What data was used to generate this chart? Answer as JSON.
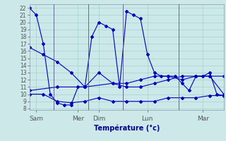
{
  "xlabel": "Température (°c)",
  "bg_color": "#cce8e8",
  "grid_color": "#99cccc",
  "line_color": "#0000bb",
  "ylim": [
    7.8,
    22.5
  ],
  "xlim": [
    0,
    28
  ],
  "yticks": [
    8,
    9,
    10,
    11,
    12,
    13,
    14,
    15,
    16,
    17,
    18,
    19,
    20,
    21,
    22
  ],
  "xtick_positions": [
    1,
    7,
    10,
    17,
    25
  ],
  "xtick_labels": [
    "Sam",
    "Mer",
    "Dim",
    "Lun",
    "Mar"
  ],
  "vlines": [
    3.5,
    8.5,
    13.5,
    21.5
  ],
  "s1x": [
    0,
    1,
    2,
    3,
    4,
    5,
    6,
    7,
    8,
    9,
    10,
    11,
    12,
    13,
    14,
    15,
    16,
    17,
    18,
    19,
    20,
    21,
    22,
    23,
    24,
    25,
    26,
    27,
    28
  ],
  "s1y": [
    22,
    21,
    17,
    10,
    8.8,
    8.5,
    8.5,
    11.0,
    11.0,
    18.0,
    20.0,
    19.5,
    19.0,
    11.0,
    21.5,
    21.0,
    20.5,
    15.5,
    13.0,
    12.5,
    12.5,
    12.5,
    11.5,
    10.5,
    12.5,
    12.5,
    13.0,
    10.0,
    9.8
  ],
  "s2x": [
    0,
    2,
    4,
    6,
    8,
    10,
    12,
    14,
    16,
    18,
    20,
    22,
    24,
    26,
    28
  ],
  "s2y": [
    16.5,
    15.5,
    14.5,
    13.0,
    11.0,
    13.0,
    11.5,
    11.0,
    11.0,
    11.5,
    12.0,
    12.5,
    12.5,
    12.5,
    12.5
  ],
  "s3x": [
    0,
    2,
    4,
    6,
    8,
    10,
    12,
    14,
    16,
    18,
    20,
    22,
    24,
    26,
    28
  ],
  "s3y": [
    10.0,
    10.0,
    9.0,
    8.8,
    9.0,
    9.5,
    9.0,
    9.0,
    9.0,
    9.0,
    9.5,
    9.5,
    9.5,
    9.8,
    9.8
  ],
  "s4x": [
    0,
    4,
    8,
    12,
    14,
    16,
    18,
    20,
    22,
    24,
    26,
    28
  ],
  "s4y": [
    10.5,
    11.0,
    11.0,
    11.5,
    11.5,
    12.0,
    12.5,
    12.5,
    12.0,
    12.5,
    12.5,
    10.0
  ]
}
